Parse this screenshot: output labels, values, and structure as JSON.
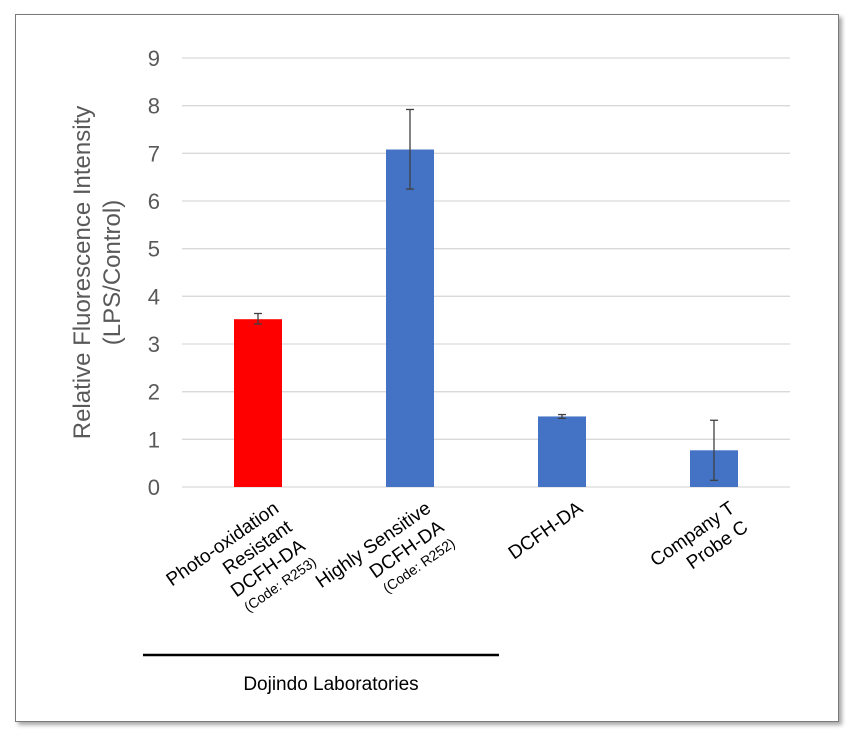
{
  "chart_data": {
    "type": "bar",
    "ylabel_lines": [
      "Relative Fluorescence Intensity",
      "(LPS/Control)"
    ],
    "ylim": [
      0,
      9
    ],
    "yticks": [
      0,
      1,
      2,
      3,
      4,
      5,
      6,
      7,
      8,
      9
    ],
    "grid": true,
    "categories": [
      {
        "lines": [
          "Photo-oxidation",
          "Resistant",
          "DCFH-DA"
        ],
        "code": "(Code: R253)"
      },
      {
        "lines": [
          "Highly Sensitive",
          "DCFH-DA"
        ],
        "code": "(Code: R252)"
      },
      {
        "lines": [
          "DCFH-DA"
        ],
        "code": ""
      },
      {
        "lines": [
          "Company T",
          "Probe C"
        ],
        "code": ""
      }
    ],
    "values": [
      3.52,
      7.08,
      1.48,
      0.77
    ],
    "error_low": [
      3.42,
      6.25,
      1.44,
      0.14
    ],
    "error_high": [
      3.64,
      7.92,
      1.52,
      1.4
    ],
    "colors": [
      "#ff0000",
      "#4472c4",
      "#4472c4",
      "#4472c4"
    ],
    "group_label": "Dojindo Laboratories"
  }
}
